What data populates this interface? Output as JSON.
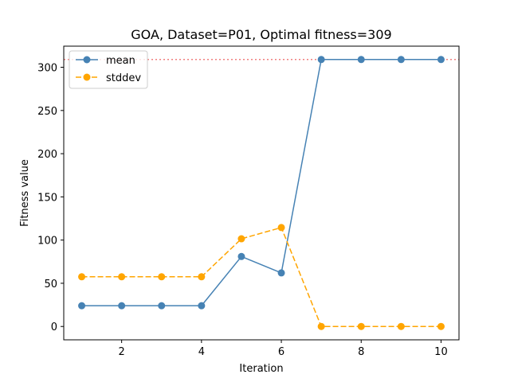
{
  "chart_data": {
    "type": "line",
    "title": "GOA, Dataset=P01, Optimal fitness=309",
    "xlabel": "Iteration",
    "ylabel": "Fitness value",
    "x": [
      1,
      2,
      3,
      4,
      5,
      6,
      7,
      8,
      9,
      10
    ],
    "xlim": [
      0.55,
      10.45
    ],
    "ylim": [
      -15.45,
      324.45
    ],
    "xticks": [
      2,
      4,
      6,
      8,
      10
    ],
    "yticks": [
      0,
      50,
      100,
      150,
      200,
      250,
      300
    ],
    "grid": false,
    "legend_position": "top-left",
    "series": [
      {
        "name": "mean",
        "values": [
          24,
          24,
          24,
          24,
          81,
          62,
          309,
          309,
          309,
          309
        ],
        "color": "#4682b4",
        "linestyle": "solid",
        "marker": "circle"
      },
      {
        "name": "stddev",
        "values": [
          57.5,
          57.5,
          57.5,
          57.5,
          101.5,
          114.5,
          0,
          0,
          0,
          0
        ],
        "color": "#ffa500",
        "linestyle": "dashed",
        "marker": "circle"
      }
    ],
    "reference_line": {
      "y": 309,
      "color": "#f08080",
      "linestyle": "dotted"
    }
  }
}
